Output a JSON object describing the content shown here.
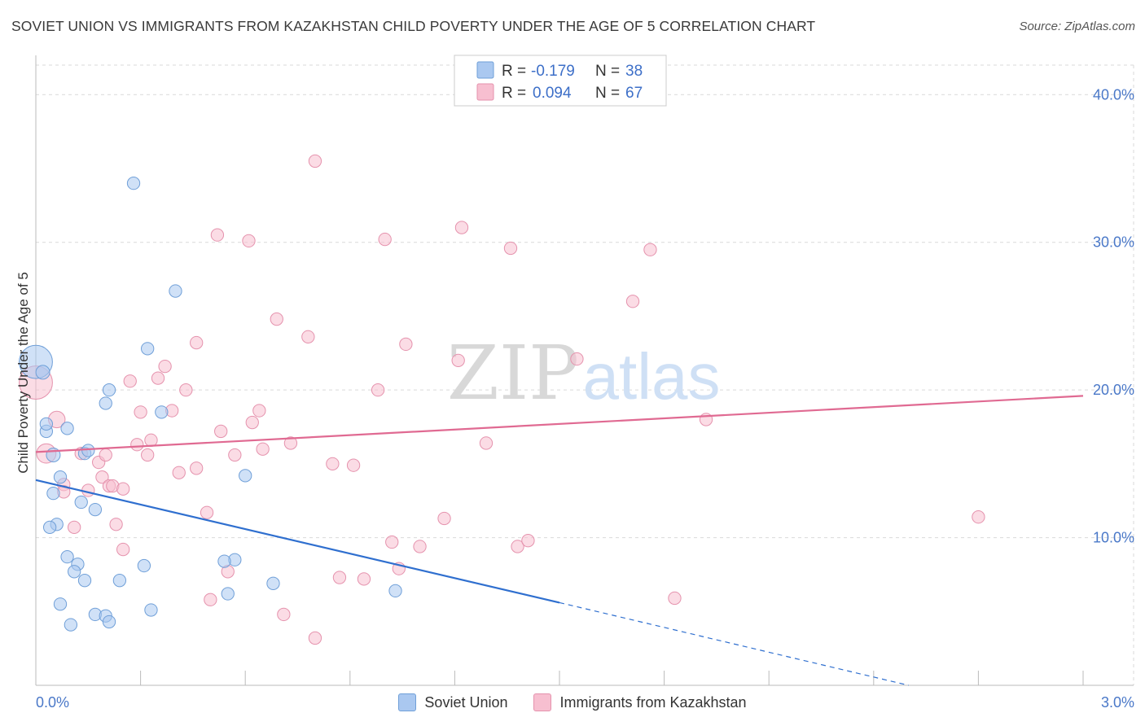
{
  "title": "SOVIET UNION VS IMMIGRANTS FROM KAZAKHSTAN CHILD POVERTY UNDER THE AGE OF 5 CORRELATION CHART",
  "source": "Source: ZipAtlas.com",
  "watermark": {
    "zip": "ZIP",
    "atlas": "atlas"
  },
  "colors": {
    "soviet_fill": "#aac8f0",
    "soviet_stroke": "#6f9fd8",
    "soviet_line": "#2f6fcf",
    "kaz_fill": "#f7bfd0",
    "kaz_stroke": "#e592ad",
    "kaz_line": "#e06a92",
    "axis_text": "#4a78c8",
    "grid": "#d9d9d9"
  },
  "legend": {
    "rows": [
      {
        "r_label": "R =",
        "r_value": "-0.179",
        "n_label": "N =",
        "n_value": "38"
      },
      {
        "r_label": "R =",
        "r_value": "0.094",
        "n_label": "N =",
        "n_value": "67"
      }
    ]
  },
  "chart_data": {
    "type": "scatter",
    "title": "SOVIET UNION VS IMMIGRANTS FROM KAZAKHSTAN CHILD POVERTY UNDER THE AGE OF 5 CORRELATION CHART",
    "xlabel": "",
    "ylabel": "Child Poverty Under the Age of 5",
    "xlim": [
      0,
      3.0
    ],
    "ylim": [
      0,
      42
    ],
    "x_tick_labels": [
      "0.0%",
      "3.0%"
    ],
    "y_ticks": [
      10,
      20,
      30,
      40
    ],
    "y_tick_labels": [
      "10.0%",
      "20.0%",
      "30.0%",
      "40.0%"
    ],
    "grid": true,
    "legend_position": "top-center",
    "series": [
      {
        "name": "Soviet Union",
        "trend": {
          "x": [
            0.0,
            1.5
          ],
          "y": [
            13.9,
            5.6
          ],
          "dashed_to": [
            2.5,
            0.0
          ]
        },
        "points": [
          [
            0.0,
            21.9,
            24
          ],
          [
            0.02,
            21.2,
            10
          ],
          [
            0.03,
            17.2,
            9
          ],
          [
            0.03,
            17.7,
            9
          ],
          [
            0.09,
            17.4,
            9
          ],
          [
            0.05,
            15.6,
            10
          ],
          [
            0.14,
            15.7,
            9
          ],
          [
            0.15,
            15.9,
            9
          ],
          [
            0.07,
            14.1,
            9
          ],
          [
            0.05,
            13.0,
            9
          ],
          [
            0.13,
            12.4,
            9
          ],
          [
            0.17,
            11.9,
            9
          ],
          [
            0.06,
            10.9,
            9
          ],
          [
            0.04,
            10.7,
            9
          ],
          [
            0.09,
            8.7,
            9
          ],
          [
            0.12,
            8.2,
            9
          ],
          [
            0.11,
            7.7,
            9
          ],
          [
            0.14,
            7.1,
            9
          ],
          [
            0.24,
            7.1,
            9
          ],
          [
            0.31,
            8.1,
            9
          ],
          [
            0.07,
            5.5,
            9
          ],
          [
            0.17,
            4.8,
            9
          ],
          [
            0.2,
            4.7,
            9
          ],
          [
            0.21,
            4.3,
            9
          ],
          [
            0.33,
            5.1,
            9
          ],
          [
            0.1,
            4.1,
            9
          ],
          [
            0.28,
            34.0,
            9
          ],
          [
            0.4,
            26.7,
            9
          ],
          [
            0.32,
            22.8,
            9
          ],
          [
            0.36,
            18.5,
            9
          ],
          [
            0.21,
            20.0,
            9
          ],
          [
            0.2,
            19.1,
            9
          ],
          [
            0.57,
            8.5,
            9
          ],
          [
            0.54,
            8.4,
            9
          ],
          [
            0.55,
            6.2,
            9
          ],
          [
            0.6,
            14.2,
            9
          ],
          [
            0.68,
            6.9,
            9
          ],
          [
            1.03,
            6.4,
            9
          ]
        ]
      },
      {
        "name": "Immigrants from Kazakhstan",
        "trend": {
          "x": [
            0.0,
            3.0
          ],
          "y": [
            15.8,
            19.6
          ]
        },
        "points": [
          [
            0.0,
            20.5,
            24
          ],
          [
            0.06,
            18.0,
            12
          ],
          [
            0.03,
            15.7,
            14
          ],
          [
            0.08,
            13.6,
            9
          ],
          [
            0.08,
            13.1,
            9
          ],
          [
            0.11,
            10.7,
            9
          ],
          [
            0.13,
            15.7,
            9
          ],
          [
            0.18,
            15.1,
            9
          ],
          [
            0.19,
            14.1,
            9
          ],
          [
            0.21,
            13.5,
            9
          ],
          [
            0.22,
            13.5,
            9
          ],
          [
            0.23,
            10.9,
            9
          ],
          [
            0.25,
            9.2,
            9
          ],
          [
            0.27,
            20.6,
            9
          ],
          [
            0.3,
            18.5,
            9
          ],
          [
            0.29,
            16.3,
            9
          ],
          [
            0.32,
            15.6,
            9
          ],
          [
            0.33,
            16.6,
            9
          ],
          [
            0.35,
            20.8,
            9
          ],
          [
            0.37,
            21.6,
            9
          ],
          [
            0.39,
            18.6,
            9
          ],
          [
            0.41,
            14.4,
            9
          ],
          [
            0.43,
            20.0,
            9
          ],
          [
            0.46,
            14.7,
            9
          ],
          [
            0.46,
            23.2,
            9
          ],
          [
            0.52,
            30.5,
            9
          ],
          [
            0.53,
            17.2,
            9
          ],
          [
            0.49,
            11.7,
            9
          ],
          [
            0.5,
            5.8,
            9
          ],
          [
            0.55,
            7.7,
            9
          ],
          [
            0.57,
            15.6,
            9
          ],
          [
            0.61,
            30.1,
            9
          ],
          [
            0.62,
            17.8,
            9
          ],
          [
            0.64,
            18.6,
            9
          ],
          [
            0.65,
            16.0,
            9
          ],
          [
            0.69,
            24.8,
            9
          ],
          [
            0.71,
            4.8,
            9
          ],
          [
            0.73,
            16.4,
            9
          ],
          [
            0.78,
            23.6,
            9
          ],
          [
            0.8,
            3.2,
            9
          ],
          [
            0.85,
            15.0,
            9
          ],
          [
            0.87,
            7.3,
            9
          ],
          [
            0.91,
            14.9,
            9
          ],
          [
            0.94,
            7.2,
            9
          ],
          [
            0.98,
            20.0,
            9
          ],
          [
            1.0,
            30.2,
            9
          ],
          [
            1.02,
            9.7,
            9
          ],
          [
            1.04,
            7.9,
            9
          ],
          [
            1.06,
            23.1,
            9
          ],
          [
            1.1,
            9.4,
            9
          ],
          [
            1.17,
            11.3,
            9
          ],
          [
            1.21,
            22.0,
            9
          ],
          [
            1.22,
            31.0,
            9
          ],
          [
            1.29,
            16.4,
            9
          ],
          [
            1.36,
            29.6,
            9
          ],
          [
            1.38,
            9.4,
            9
          ],
          [
            1.41,
            9.8,
            9
          ],
          [
            1.55,
            22.1,
            9
          ],
          [
            1.71,
            26.0,
            9
          ],
          [
            1.76,
            29.5,
            9
          ],
          [
            1.83,
            5.9,
            9
          ],
          [
            1.92,
            18.0,
            9
          ],
          [
            2.7,
            11.4,
            9
          ],
          [
            0.8,
            35.5,
            9
          ],
          [
            0.25,
            13.3,
            9
          ],
          [
            0.15,
            13.2,
            9
          ],
          [
            0.2,
            15.6,
            9
          ]
        ]
      }
    ]
  }
}
